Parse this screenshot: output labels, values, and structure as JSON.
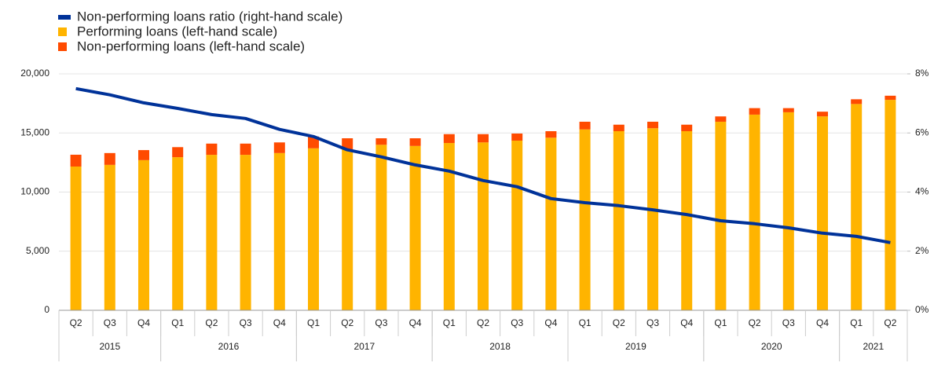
{
  "chart_data": {
    "type": "bar",
    "categories": [
      "Q2",
      "Q3",
      "Q4",
      "Q1",
      "Q2",
      "Q3",
      "Q4",
      "Q1",
      "Q2",
      "Q3",
      "Q4",
      "Q1",
      "Q2",
      "Q3",
      "Q4",
      "Q1",
      "Q2",
      "Q3",
      "Q4",
      "Q1",
      "Q2",
      "Q3",
      "Q4",
      "Q1",
      "Q2"
    ],
    "year_groups": [
      {
        "label": "2015",
        "count": 3
      },
      {
        "label": "2016",
        "count": 4
      },
      {
        "label": "2017",
        "count": 4
      },
      {
        "label": "2018",
        "count": 4
      },
      {
        "label": "2019",
        "count": 4
      },
      {
        "label": "2020",
        "count": 4
      },
      {
        "label": "2021",
        "count": 2
      }
    ],
    "series": [
      {
        "name": "Non-performing loans ratio (right-hand scale)",
        "color": "#003299",
        "type": "line",
        "axis": "y2",
        "values": [
          7.5,
          7.29,
          7.02,
          6.83,
          6.62,
          6.49,
          6.12,
          5.88,
          5.43,
          5.19,
          4.92,
          4.71,
          4.39,
          4.18,
          3.78,
          3.64,
          3.54,
          3.4,
          3.24,
          3.03,
          2.93,
          2.79,
          2.61,
          2.5,
          2.29
        ]
      },
      {
        "name": "Performing loans (left-hand scale)",
        "color": "#ffb400",
        "type": "bar",
        "values": [
          12160,
          12300,
          12700,
          12950,
          13150,
          13150,
          13300,
          13700,
          13600,
          14000,
          13900,
          14150,
          14200,
          14350,
          14600,
          15300,
          15150,
          15400,
          15150,
          15950,
          16550,
          16750,
          16400,
          17450,
          17800
        ]
      },
      {
        "name": "Non-performing loans (left-hand scale)",
        "color": "#ff4b00",
        "type": "bar",
        "values": [
          1000,
          1000,
          850,
          850,
          950,
          950,
          900,
          1000,
          950,
          550,
          650,
          750,
          700,
          600,
          550,
          650,
          550,
          550,
          550,
          450,
          550,
          350,
          400,
          400,
          350
        ]
      }
    ],
    "ylim": [
      0,
      20000
    ],
    "yticks": [
      0,
      {
        "value": 5000,
        "label": "5,000"
      },
      {
        "value": 10000,
        "label": "10,000"
      },
      {
        "value": 15000,
        "label": "15,000"
      },
      {
        "value": 20000,
        "label": "20,000"
      }
    ],
    "y2lim": [
      0,
      8
    ],
    "y2ticks": [
      {
        "value": 0,
        "label": "0%"
      },
      {
        "value": 2,
        "label": "2%"
      },
      {
        "value": 4,
        "label": "4%"
      },
      {
        "value": 6,
        "label": "6%"
      },
      {
        "value": 8,
        "label": "8%"
      }
    ],
    "grid": true
  }
}
